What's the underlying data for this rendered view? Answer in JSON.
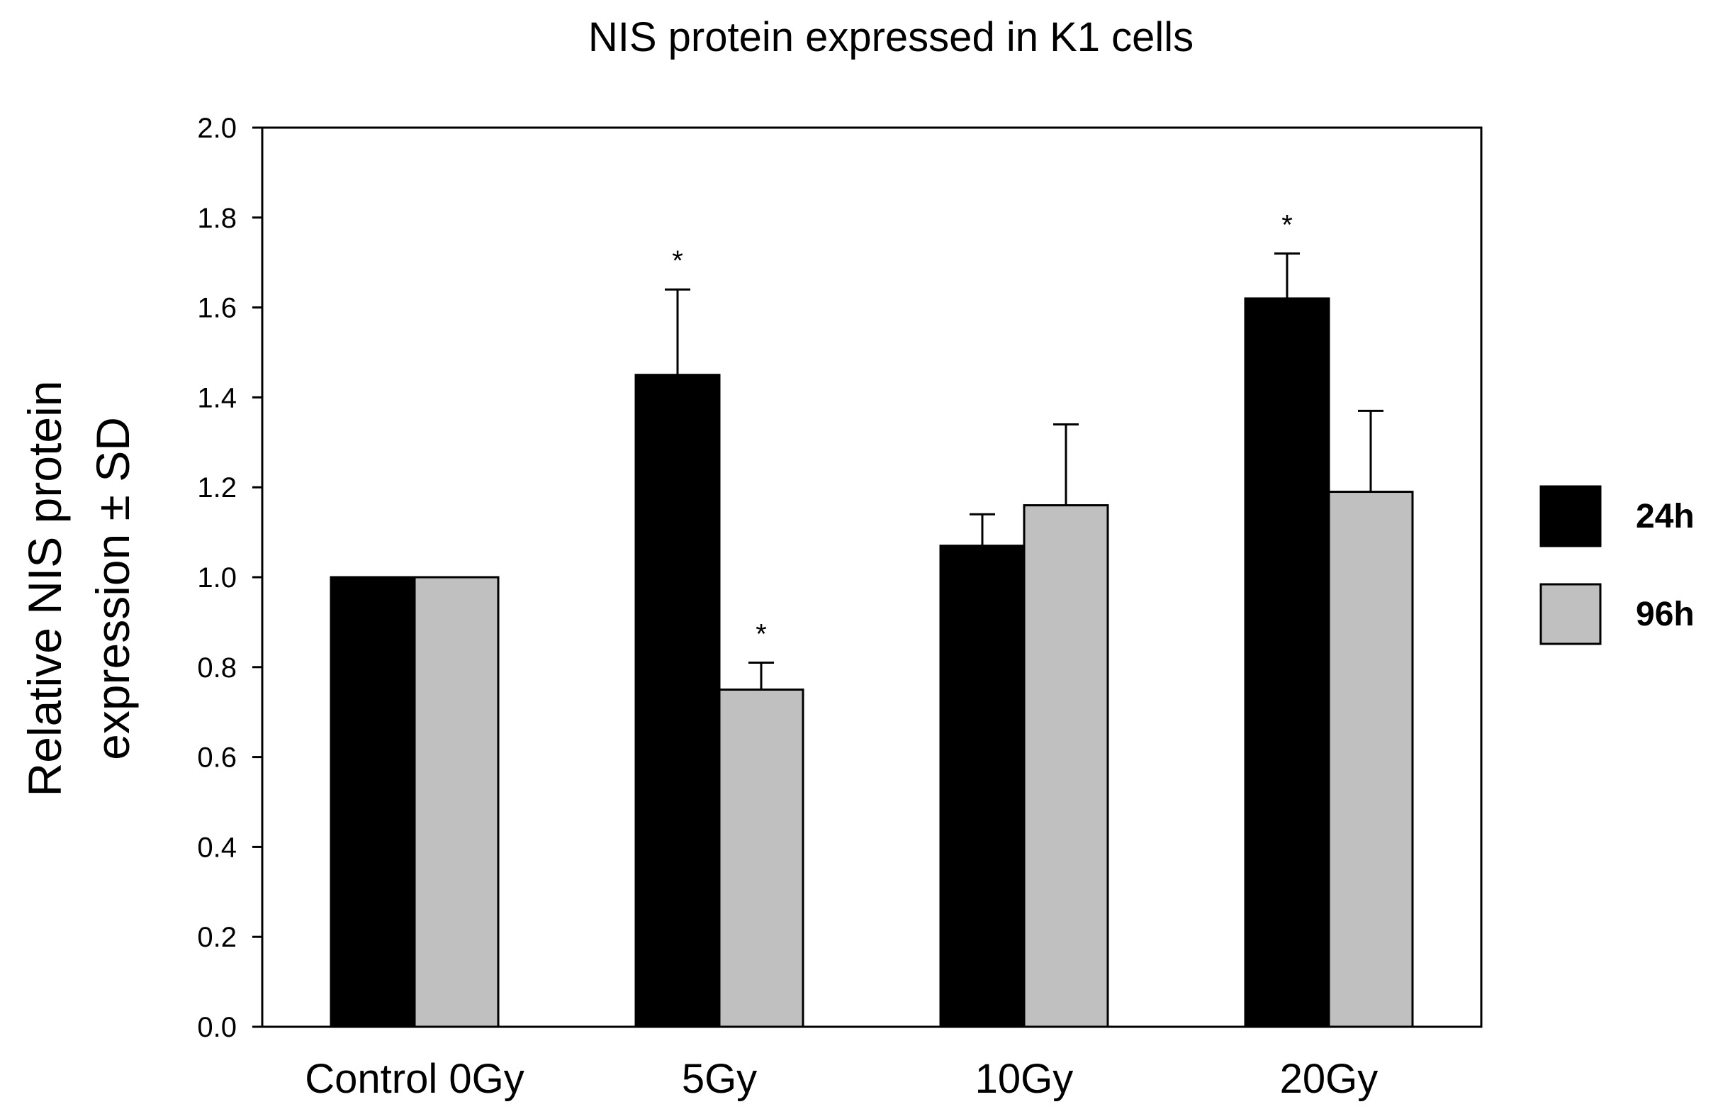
{
  "chart_data": {
    "type": "bar",
    "title": "NIS protein expressed in K1 cells",
    "xlabel": "",
    "ylabel": "Relative NIS protein expression ± SD",
    "ylabel_lines": [
      "Relative NIS protein",
      "expression ± SD"
    ],
    "ylim": [
      0,
      2.0
    ],
    "yticks": [
      "0.0",
      "0.2",
      "0.4",
      "0.6",
      "0.8",
      "1.0",
      "1.2",
      "1.4",
      "1.6",
      "1.8",
      "2.0"
    ],
    "categories": [
      "Control 0Gy",
      "5Gy",
      "10Gy",
      "20Gy"
    ],
    "series": [
      {
        "name": "24h",
        "color": "#000000",
        "values": [
          1.0,
          1.45,
          1.07,
          1.62
        ],
        "errors": [
          0.0,
          0.19,
          0.07,
          0.1
        ],
        "significance": [
          "",
          "*",
          "",
          "*"
        ]
      },
      {
        "name": "96h",
        "color": "#c0c0c0",
        "values": [
          1.0,
          0.75,
          1.16,
          1.19
        ],
        "errors": [
          0.0,
          0.06,
          0.18,
          0.18
        ],
        "significance": [
          "",
          "*",
          "",
          ""
        ]
      }
    ],
    "legend_position": "right"
  }
}
